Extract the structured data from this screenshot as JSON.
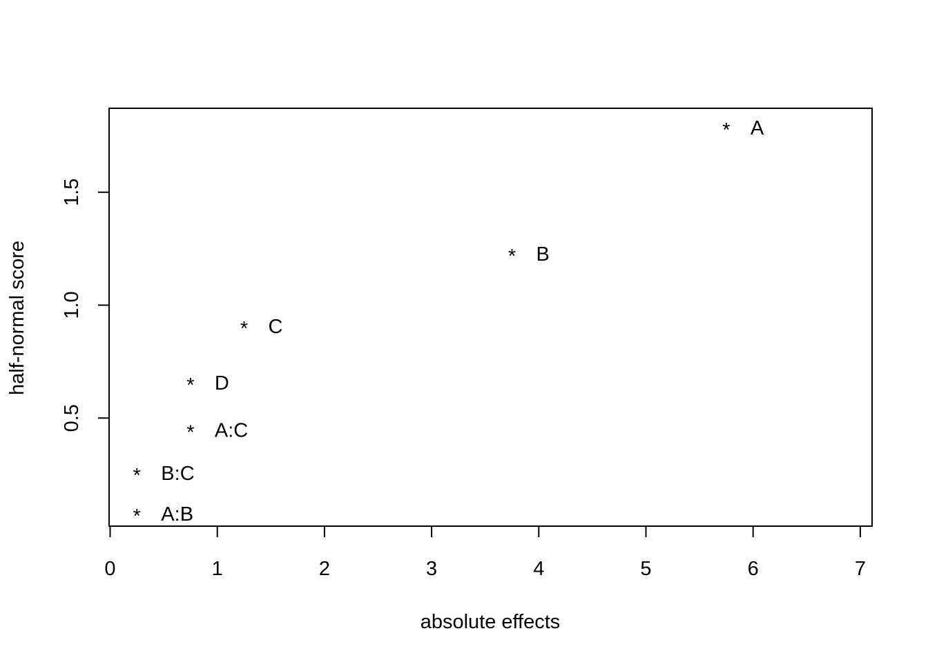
{
  "chart_data": {
    "type": "scatter",
    "title": "",
    "xlabel": "absolute effects",
    "ylabel": "half-normal score",
    "xlim": [
      0,
      7.1
    ],
    "ylim": [
      0,
      1.85
    ],
    "x_ticks": [
      0,
      1,
      2,
      3,
      4,
      5,
      6,
      7
    ],
    "x_tick_labels": [
      "0",
      "1",
      "2",
      "3",
      "4",
      "5",
      "6",
      "7"
    ],
    "y_ticks": [
      0.5,
      1.0,
      1.5
    ],
    "y_tick_labels": [
      "0.5",
      "1.0",
      "1.5"
    ],
    "marker": "*",
    "points": [
      {
        "label": "A:B",
        "x": 0.25,
        "y": 0.08
      },
      {
        "label": "B:C",
        "x": 0.25,
        "y": 0.26
      },
      {
        "label": "A:C",
        "x": 0.75,
        "y": 0.45
      },
      {
        "label": "D",
        "x": 0.75,
        "y": 0.66
      },
      {
        "label": "C",
        "x": 1.25,
        "y": 0.91
      },
      {
        "label": "B",
        "x": 3.75,
        "y": 1.23
      },
      {
        "label": "A",
        "x": 5.75,
        "y": 1.79
      }
    ],
    "grid": false,
    "legend": "none"
  }
}
